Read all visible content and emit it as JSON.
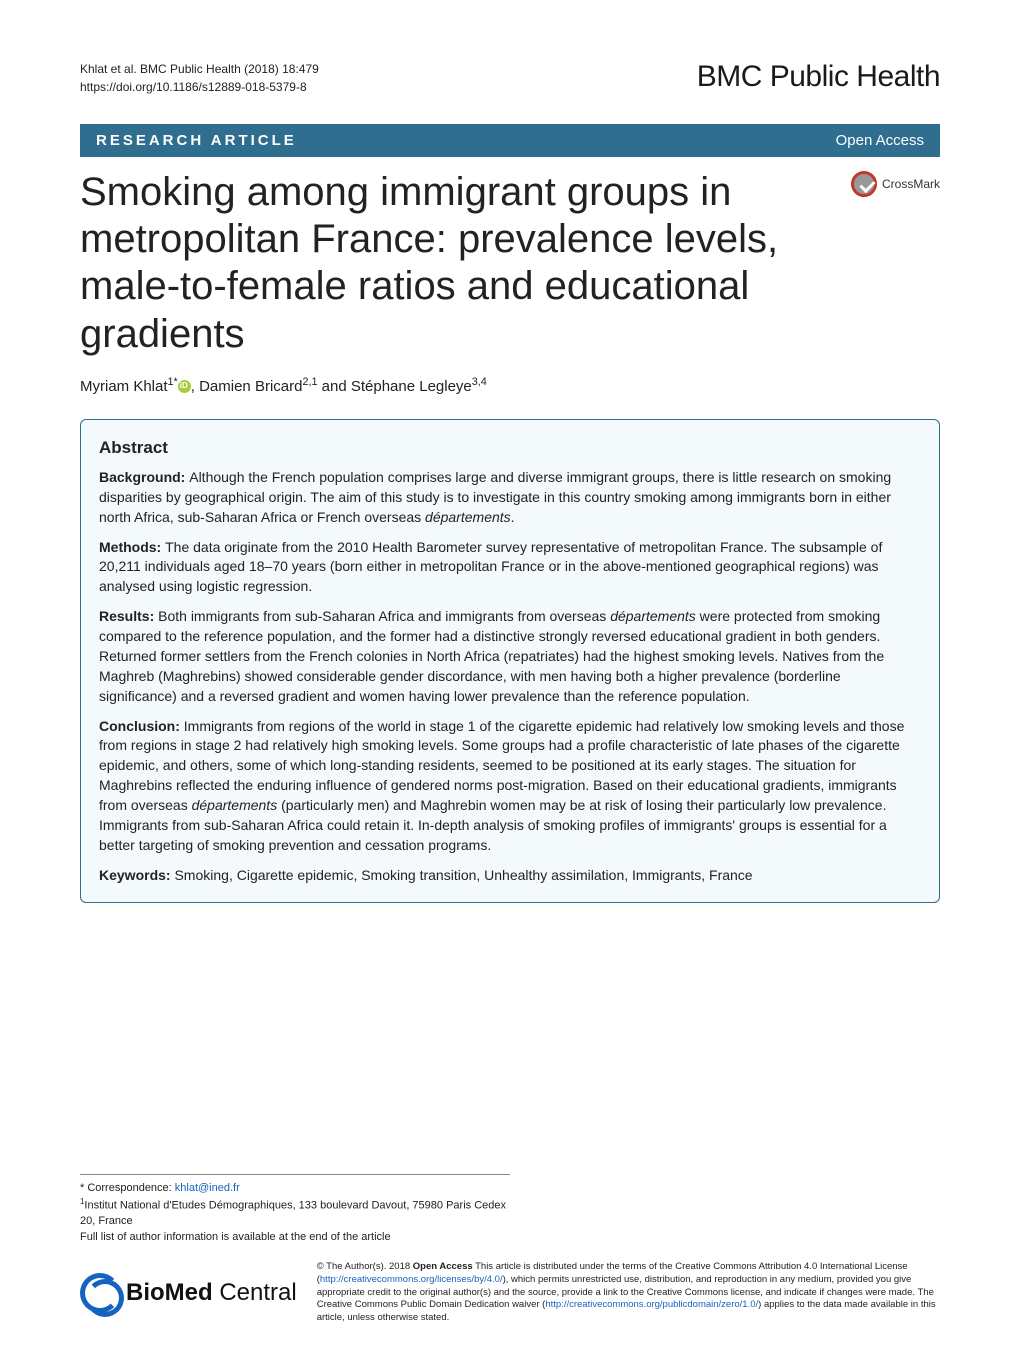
{
  "header": {
    "citation_line": "Khlat et al. BMC Public Health (2018) 18:479",
    "doi_line": "https://doi.org/10.1186/s12889-018-5379-8",
    "journal_name": "BMC Public Health"
  },
  "bar": {
    "article_type": "RESEARCH ARTICLE",
    "open_access": "Open Access"
  },
  "crossmark_label": "CrossMark",
  "title": "Smoking among immigrant groups in metropolitan France: prevalence levels, male-to-female ratios and educational gradients",
  "authors": {
    "a1_name": "Myriam Khlat",
    "a1_sup": "1*",
    "a2_name": ", Damien Bricard",
    "a2_sup": "2,1",
    "a3_name": " and Stéphane Legleye",
    "a3_sup": "3,4"
  },
  "abstract": {
    "heading": "Abstract",
    "bg_label": "Background: ",
    "bg_text_a": "Although the French population comprises large and diverse immigrant groups, there is little research on smoking disparities by geographical origin. The aim of this study is to investigate in this country smoking among immigrants born in either north Africa, sub-Saharan Africa or French overseas ",
    "bg_text_b": "départements",
    "bg_text_c": ".",
    "methods_label": "Methods: ",
    "methods_text": "The data originate from the 2010 Health Barometer survey representative of metropolitan France. The subsample of 20,211 individuals aged 18–70 years (born either in metropolitan France or in the above-mentioned geographical regions) was analysed using logistic regression.",
    "results_label": "Results: ",
    "results_text_a": "Both immigrants from sub-Saharan Africa and immigrants from overseas ",
    "results_text_b": "départements",
    "results_text_c": " were protected from smoking compared to the reference population, and the former had a distinctive strongly reversed educational gradient in both genders. Returned former settlers from the French colonies in North Africa (repatriates) had the highest smoking levels. Natives from the Maghreb (Maghrebins) showed considerable gender discordance, with men having both a higher prevalence (borderline significance) and a reversed gradient and women having lower prevalence than the reference population.",
    "conclusion_label": "Conclusion: ",
    "conclusion_text_a": "Immigrants from regions of the world in stage 1 of the cigarette epidemic had relatively low smoking levels and those from regions in stage 2 had relatively high smoking levels. Some groups had a profile characteristic of late phases of the cigarette epidemic, and others, some of which long-standing residents, seemed to be positioned at its early stages. The situation for Maghrebins reflected the enduring influence of gendered norms post-migration. Based on their educational gradients, immigrants from overseas ",
    "conclusion_text_b": "départements",
    "conclusion_text_c": " (particularly men) and Maghrebin women may be at risk of losing their particularly low prevalence. Immigrants from sub-Saharan Africa could retain it. In-depth analysis of smoking profiles of immigrants' groups is essential for a better targeting of smoking prevention and cessation programs.",
    "keywords_label": "Keywords: ",
    "keywords_text": "Smoking, Cigarette epidemic, Smoking transition, Unhealthy assimilation, Immigrants, France"
  },
  "correspondence": {
    "label": "* Correspondence: ",
    "email": "khlat@ined.fr",
    "affil_sup": "1",
    "affil_text": "Institut National d'Etudes Démographiques, 133 boulevard Davout, 75980 Paris Cedex 20, France",
    "full_list": "Full list of author information is available at the end of the article"
  },
  "logo": {
    "brand_a": "BioMed",
    "brand_b": " Central"
  },
  "license": {
    "prefix": "© The Author(s). 2018 ",
    "oa_bold": "Open Access",
    "text_a": " This article is distributed under the terms of the Creative Commons Attribution 4.0 International License (",
    "link1": "http://creativecommons.org/licenses/by/4.0/",
    "text_b": "), which permits unrestricted use, distribution, and reproduction in any medium, provided you give appropriate credit to the original author(s) and the source, provide a link to the Creative Commons license, and indicate if changes were made. The Creative Commons Public Domain Dedication waiver (",
    "link2": "http://creativecommons.org/publicdomain/zero/1.0/",
    "text_c": ") applies to the data made available in this article, unless otherwise stated."
  },
  "colors": {
    "bar_bg": "#2f6e8f",
    "abstract_bg": "#f4f9fb",
    "link": "#1464bf"
  }
}
